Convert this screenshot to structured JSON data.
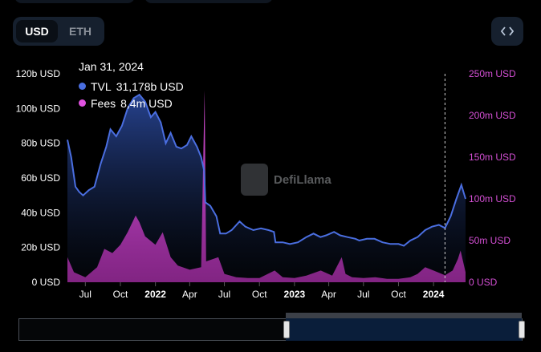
{
  "currency_toggle": {
    "options": [
      "USD",
      "ETH"
    ],
    "selected": "USD"
  },
  "embed_icon": "code-brackets-icon",
  "tooltip": {
    "date": "Jan 31, 2024",
    "series": [
      {
        "label": "TVL",
        "value": "31,178b USD",
        "color": "#4a6ee0"
      },
      {
        "label": "Fees",
        "value": "8,4m USD",
        "color": "#e052e0"
      }
    ]
  },
  "watermark": "DefiLlama",
  "colors": {
    "tvl": "#4a6ee0",
    "fees": "#e052e0",
    "right_axis": "#d44fd4",
    "background": "#000000"
  },
  "chart_data": {
    "type": "area",
    "x_ticks": [
      "Jul",
      "Oct",
      "2022",
      "Apr",
      "Jul",
      "Oct",
      "2023",
      "Apr",
      "Jul",
      "Oct",
      "2024"
    ],
    "x_range": [
      "2021-05-15",
      "2024-03-25"
    ],
    "y_left": {
      "ticks": [
        "0 USD",
        "20b USD",
        "40b USD",
        "60b USD",
        "80b USD",
        "100b USD",
        "120b USD"
      ],
      "range": [
        0,
        120
      ]
    },
    "y_right": {
      "ticks": [
        "0 USD",
        "50m USD",
        "100m USD",
        "150m USD",
        "200m USD",
        "250m USD"
      ],
      "range": [
        0,
        250
      ]
    },
    "series": [
      {
        "name": "TVL",
        "axis": "left",
        "unit": "b USD",
        "points": [
          [
            "2021-05-15",
            82
          ],
          [
            "2021-05-25",
            72
          ],
          [
            "2021-06-05",
            55
          ],
          [
            "2021-06-15",
            52
          ],
          [
            "2021-06-25",
            50
          ],
          [
            "2021-07-10",
            53
          ],
          [
            "2021-07-25",
            55
          ],
          [
            "2021-08-10",
            68
          ],
          [
            "2021-08-25",
            78
          ],
          [
            "2021-09-05",
            88
          ],
          [
            "2021-09-20",
            84
          ],
          [
            "2021-10-05",
            90
          ],
          [
            "2021-10-20",
            100
          ],
          [
            "2021-11-05",
            106
          ],
          [
            "2021-11-20",
            108
          ],
          [
            "2021-12-05",
            104
          ],
          [
            "2021-12-20",
            95
          ],
          [
            "2022-01-01",
            98
          ],
          [
            "2022-01-15",
            92
          ],
          [
            "2022-01-28",
            80
          ],
          [
            "2022-02-10",
            86
          ],
          [
            "2022-02-25",
            78
          ],
          [
            "2022-03-10",
            77
          ],
          [
            "2022-03-25",
            79
          ],
          [
            "2022-04-05",
            84
          ],
          [
            "2022-04-20",
            78
          ],
          [
            "2022-05-01",
            72
          ],
          [
            "2022-05-09",
            64
          ],
          [
            "2022-05-12",
            46
          ],
          [
            "2022-05-25",
            44
          ],
          [
            "2022-06-10",
            38
          ],
          [
            "2022-06-20",
            28
          ],
          [
            "2022-07-05",
            28
          ],
          [
            "2022-07-20",
            30
          ],
          [
            "2022-08-10",
            35
          ],
          [
            "2022-08-25",
            32
          ],
          [
            "2022-09-15",
            30
          ],
          [
            "2022-10-05",
            31
          ],
          [
            "2022-10-25",
            30
          ],
          [
            "2022-11-08",
            29
          ],
          [
            "2022-11-12",
            23
          ],
          [
            "2022-12-01",
            23
          ],
          [
            "2022-12-20",
            22
          ],
          [
            "2023-01-10",
            23
          ],
          [
            "2023-02-01",
            26
          ],
          [
            "2023-02-20",
            28
          ],
          [
            "2023-03-10",
            26
          ],
          [
            "2023-03-25",
            27
          ],
          [
            "2023-04-15",
            29
          ],
          [
            "2023-05-01",
            27
          ],
          [
            "2023-05-20",
            26
          ],
          [
            "2023-06-10",
            25
          ],
          [
            "2023-06-20",
            24
          ],
          [
            "2023-07-10",
            25
          ],
          [
            "2023-07-30",
            25
          ],
          [
            "2023-08-20",
            23
          ],
          [
            "2023-09-10",
            22
          ],
          [
            "2023-10-01",
            22
          ],
          [
            "2023-10-15",
            21
          ],
          [
            "2023-11-01",
            24
          ],
          [
            "2023-11-20",
            26
          ],
          [
            "2023-12-10",
            30
          ],
          [
            "2023-12-28",
            32
          ],
          [
            "2024-01-15",
            33
          ],
          [
            "2024-01-31",
            31.2
          ],
          [
            "2024-02-15",
            38
          ],
          [
            "2024-03-01",
            48
          ],
          [
            "2024-03-14",
            56
          ],
          [
            "2024-03-25",
            48
          ]
        ]
      },
      {
        "name": "Fees",
        "axis": "right",
        "unit": "m USD",
        "points": [
          [
            "2021-05-15",
            30
          ],
          [
            "2021-06-01",
            12
          ],
          [
            "2021-07-01",
            6
          ],
          [
            "2021-08-01",
            18
          ],
          [
            "2021-08-20",
            40
          ],
          [
            "2021-09-10",
            35
          ],
          [
            "2021-10-01",
            45
          ],
          [
            "2021-10-20",
            60
          ],
          [
            "2021-11-10",
            80
          ],
          [
            "2021-11-20",
            72
          ],
          [
            "2021-12-05",
            55
          ],
          [
            "2022-01-01",
            45
          ],
          [
            "2022-01-20",
            60
          ],
          [
            "2022-02-10",
            30
          ],
          [
            "2022-03-01",
            20
          ],
          [
            "2022-04-01",
            15
          ],
          [
            "2022-05-01",
            18
          ],
          [
            "2022-05-10",
            230
          ],
          [
            "2022-05-14",
            25
          ],
          [
            "2022-06-15",
            30
          ],
          [
            "2022-07-01",
            10
          ],
          [
            "2022-08-01",
            6
          ],
          [
            "2022-09-01",
            5
          ],
          [
            "2022-10-01",
            5
          ],
          [
            "2022-11-10",
            14
          ],
          [
            "2022-12-01",
            6
          ],
          [
            "2023-01-01",
            5
          ],
          [
            "2023-02-01",
            8
          ],
          [
            "2023-03-11",
            14
          ],
          [
            "2023-04-10",
            8
          ],
          [
            "2023-05-05",
            30
          ],
          [
            "2023-05-15",
            10
          ],
          [
            "2023-06-01",
            6
          ],
          [
            "2023-07-01",
            5
          ],
          [
            "2023-08-01",
            6
          ],
          [
            "2023-09-01",
            4
          ],
          [
            "2023-10-01",
            4
          ],
          [
            "2023-11-01",
            6
          ],
          [
            "2023-11-20",
            10
          ],
          [
            "2023-12-10",
            18
          ],
          [
            "2024-01-01",
            14
          ],
          [
            "2024-01-31",
            8.4
          ],
          [
            "2024-02-20",
            14
          ],
          [
            "2024-03-05",
            28
          ],
          [
            "2024-03-12",
            38
          ],
          [
            "2024-03-25",
            12
          ]
        ]
      }
    ],
    "crosshair_date": "2024-01-31"
  }
}
